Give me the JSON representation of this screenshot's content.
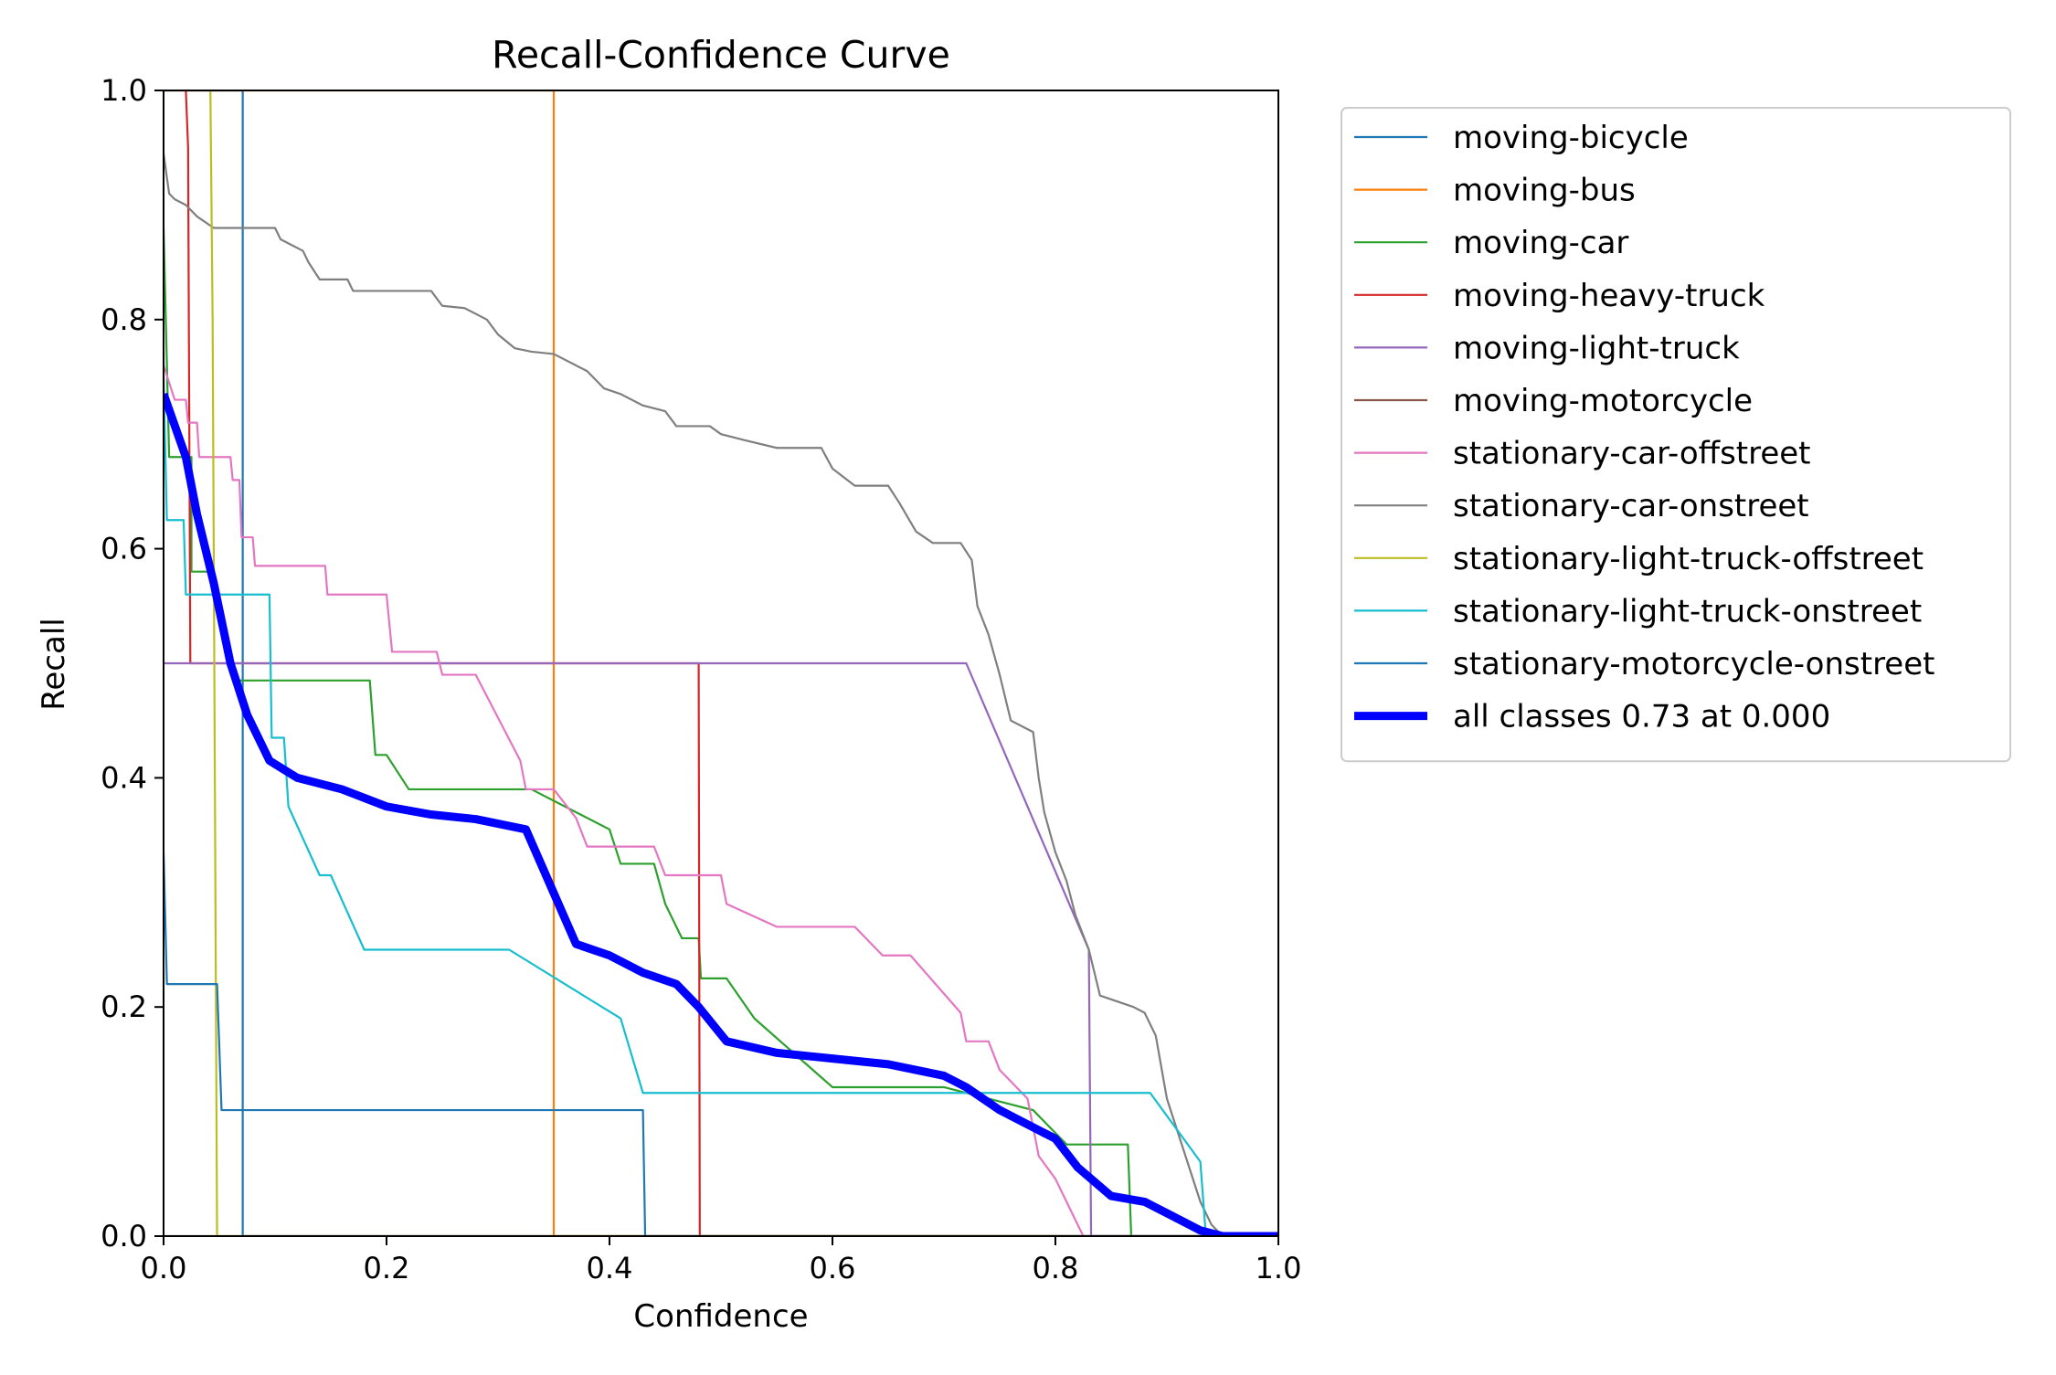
{
  "chart_data": {
    "type": "line",
    "title": "Recall-Confidence Curve",
    "xlabel": "Confidence",
    "ylabel": "Recall",
    "xlim": [
      0,
      1
    ],
    "ylim": [
      0,
      1
    ],
    "xticks": [
      "0.0",
      "0.2",
      "0.4",
      "0.6",
      "0.8",
      "1.0"
    ],
    "yticks": [
      "0.0",
      "0.2",
      "0.4",
      "0.6",
      "0.8",
      "1.0"
    ],
    "grid": false,
    "legend_position": "outside-right-top",
    "series": [
      {
        "name": "moving-bicycle",
        "color": "#1f77b4",
        "points": [
          [
            0,
            1
          ],
          [
            0.071,
            1
          ],
          [
            0.071,
            0
          ],
          [
            1,
            0
          ]
        ]
      },
      {
        "name": "moving-bus",
        "color": "#ff7f0e",
        "points": [
          [
            0,
            1
          ],
          [
            0.35,
            1
          ],
          [
            0.35,
            0
          ],
          [
            1,
            0
          ]
        ]
      },
      {
        "name": "moving-car",
        "color": "#2ca02c",
        "points": [
          [
            0,
            0.88
          ],
          [
            0.005,
            0.68
          ],
          [
            0.025,
            0.68
          ],
          [
            0.025,
            0.58
          ],
          [
            0.042,
            0.58
          ],
          [
            0.05,
            0.55
          ],
          [
            0.055,
            0.52
          ],
          [
            0.065,
            0.485
          ],
          [
            0.185,
            0.485
          ],
          [
            0.19,
            0.42
          ],
          [
            0.2,
            0.42
          ],
          [
            0.22,
            0.39
          ],
          [
            0.33,
            0.39
          ],
          [
            0.4,
            0.355
          ],
          [
            0.41,
            0.325
          ],
          [
            0.44,
            0.325
          ],
          [
            0.45,
            0.29
          ],
          [
            0.465,
            0.26
          ],
          [
            0.48,
            0.26
          ],
          [
            0.482,
            0.225
          ],
          [
            0.505,
            0.225
          ],
          [
            0.53,
            0.19
          ],
          [
            0.6,
            0.13
          ],
          [
            0.7,
            0.13
          ],
          [
            0.78,
            0.11
          ],
          [
            0.8,
            0.09
          ],
          [
            0.81,
            0.08
          ],
          [
            0.865,
            0.08
          ],
          [
            0.868,
            0
          ],
          [
            1,
            0
          ]
        ]
      },
      {
        "name": "moving-heavy-truck",
        "color": "#d62728",
        "points": [
          [
            0.02,
            1
          ],
          [
            0.022,
            0.95
          ],
          [
            0.024,
            0.5
          ],
          [
            0.48,
            0.5
          ],
          [
            0.481,
            0
          ],
          [
            1,
            0
          ]
        ]
      },
      {
        "name": "moving-light-truck",
        "color": "#9467bd",
        "points": [
          [
            0,
            0.5
          ],
          [
            0.72,
            0.5
          ],
          [
            0.83,
            0.25
          ],
          [
            0.832,
            0
          ],
          [
            1,
            0
          ]
        ]
      },
      {
        "name": "moving-motorcycle",
        "color": "#8c564b",
        "points": [
          [
            0,
            0
          ],
          [
            1,
            0
          ]
        ]
      },
      {
        "name": "stationary-car-offstreet",
        "color": "#e377c2",
        "points": [
          [
            0,
            0.76
          ],
          [
            0.01,
            0.73
          ],
          [
            0.02,
            0.73
          ],
          [
            0.022,
            0.71
          ],
          [
            0.03,
            0.71
          ],
          [
            0.032,
            0.68
          ],
          [
            0.06,
            0.68
          ],
          [
            0.062,
            0.66
          ],
          [
            0.068,
            0.66
          ],
          [
            0.07,
            0.61
          ],
          [
            0.08,
            0.61
          ],
          [
            0.082,
            0.585
          ],
          [
            0.145,
            0.585
          ],
          [
            0.147,
            0.56
          ],
          [
            0.2,
            0.56
          ],
          [
            0.205,
            0.51
          ],
          [
            0.245,
            0.51
          ],
          [
            0.25,
            0.49
          ],
          [
            0.28,
            0.49
          ],
          [
            0.32,
            0.415
          ],
          [
            0.325,
            0.39
          ],
          [
            0.35,
            0.39
          ],
          [
            0.37,
            0.365
          ],
          [
            0.38,
            0.34
          ],
          [
            0.44,
            0.34
          ],
          [
            0.45,
            0.315
          ],
          [
            0.5,
            0.315
          ],
          [
            0.505,
            0.29
          ],
          [
            0.55,
            0.27
          ],
          [
            0.62,
            0.27
          ],
          [
            0.645,
            0.245
          ],
          [
            0.67,
            0.245
          ],
          [
            0.715,
            0.195
          ],
          [
            0.72,
            0.17
          ],
          [
            0.74,
            0.17
          ],
          [
            0.75,
            0.145
          ],
          [
            0.775,
            0.12
          ],
          [
            0.785,
            0.07
          ],
          [
            0.8,
            0.05
          ],
          [
            0.81,
            0.03
          ],
          [
            0.82,
            0.01
          ],
          [
            0.825,
            0
          ],
          [
            1,
            0
          ]
        ]
      },
      {
        "name": "stationary-car-onstreet",
        "color": "#7f7f7f",
        "points": [
          [
            0,
            0.945
          ],
          [
            0.005,
            0.91
          ],
          [
            0.01,
            0.905
          ],
          [
            0.02,
            0.9
          ],
          [
            0.03,
            0.89
          ],
          [
            0.045,
            0.88
          ],
          [
            0.1,
            0.88
          ],
          [
            0.105,
            0.87
          ],
          [
            0.125,
            0.86
          ],
          [
            0.13,
            0.85
          ],
          [
            0.14,
            0.835
          ],
          [
            0.165,
            0.835
          ],
          [
            0.17,
            0.825
          ],
          [
            0.24,
            0.825
          ],
          [
            0.25,
            0.812
          ],
          [
            0.27,
            0.81
          ],
          [
            0.29,
            0.8
          ],
          [
            0.3,
            0.787
          ],
          [
            0.315,
            0.775
          ],
          [
            0.33,
            0.772
          ],
          [
            0.35,
            0.77
          ],
          [
            0.38,
            0.755
          ],
          [
            0.395,
            0.74
          ],
          [
            0.41,
            0.735
          ],
          [
            0.43,
            0.725
          ],
          [
            0.45,
            0.72
          ],
          [
            0.46,
            0.707
          ],
          [
            0.49,
            0.707
          ],
          [
            0.5,
            0.7
          ],
          [
            0.52,
            0.695
          ],
          [
            0.55,
            0.688
          ],
          [
            0.59,
            0.688
          ],
          [
            0.6,
            0.67
          ],
          [
            0.62,
            0.655
          ],
          [
            0.65,
            0.655
          ],
          [
            0.66,
            0.64
          ],
          [
            0.675,
            0.615
          ],
          [
            0.69,
            0.605
          ],
          [
            0.715,
            0.605
          ],
          [
            0.725,
            0.59
          ],
          [
            0.73,
            0.55
          ],
          [
            0.74,
            0.525
          ],
          [
            0.75,
            0.49
          ],
          [
            0.76,
            0.45
          ],
          [
            0.78,
            0.44
          ],
          [
            0.785,
            0.4
          ],
          [
            0.79,
            0.37
          ],
          [
            0.8,
            0.335
          ],
          [
            0.81,
            0.31
          ],
          [
            0.818,
            0.28
          ],
          [
            0.83,
            0.25
          ],
          [
            0.84,
            0.21
          ],
          [
            0.87,
            0.2
          ],
          [
            0.88,
            0.195
          ],
          [
            0.89,
            0.175
          ],
          [
            0.9,
            0.12
          ],
          [
            0.91,
            0.09
          ],
          [
            0.92,
            0.06
          ],
          [
            0.93,
            0.03
          ],
          [
            0.94,
            0.01
          ],
          [
            0.95,
            0
          ],
          [
            1,
            0
          ]
        ]
      },
      {
        "name": "stationary-light-truck-offstreet",
        "color": "#bcbd22",
        "points": [
          [
            0.042,
            1
          ],
          [
            0.044,
            0.8
          ],
          [
            0.048,
            0
          ],
          [
            1,
            0
          ]
        ]
      },
      {
        "name": "stationary-light-truck-onstreet",
        "color": "#17becf",
        "points": [
          [
            0,
            0.75
          ],
          [
            0.003,
            0.625
          ],
          [
            0.018,
            0.625
          ],
          [
            0.02,
            0.56
          ],
          [
            0.095,
            0.56
          ],
          [
            0.097,
            0.435
          ],
          [
            0.108,
            0.435
          ],
          [
            0.112,
            0.375
          ],
          [
            0.14,
            0.315
          ],
          [
            0.15,
            0.315
          ],
          [
            0.18,
            0.25
          ],
          [
            0.31,
            0.25
          ],
          [
            0.41,
            0.19
          ],
          [
            0.43,
            0.125
          ],
          [
            0.885,
            0.125
          ],
          [
            0.93,
            0.065
          ],
          [
            0.935,
            0
          ],
          [
            1,
            0
          ]
        ]
      },
      {
        "name": "stationary-motorcycle-onstreet",
        "color": "#1f77b4",
        "points": [
          [
            0,
            0.335
          ],
          [
            0.003,
            0.22
          ],
          [
            0.048,
            0.22
          ],
          [
            0.052,
            0.11
          ],
          [
            0.43,
            0.11
          ],
          [
            0.432,
            0
          ],
          [
            1,
            0
          ]
        ]
      },
      {
        "name": "all classes 0.73 at 0.000",
        "color": "#0000ff",
        "bold": true,
        "points": [
          [
            0,
            0.735
          ],
          [
            0.02,
            0.68
          ],
          [
            0.03,
            0.63
          ],
          [
            0.045,
            0.57
          ],
          [
            0.06,
            0.5
          ],
          [
            0.075,
            0.455
          ],
          [
            0.095,
            0.415
          ],
          [
            0.12,
            0.4
          ],
          [
            0.16,
            0.39
          ],
          [
            0.2,
            0.375
          ],
          [
            0.24,
            0.368
          ],
          [
            0.28,
            0.364
          ],
          [
            0.3,
            0.36
          ],
          [
            0.325,
            0.355
          ],
          [
            0.37,
            0.255
          ],
          [
            0.4,
            0.245
          ],
          [
            0.43,
            0.23
          ],
          [
            0.46,
            0.22
          ],
          [
            0.48,
            0.2
          ],
          [
            0.505,
            0.17
          ],
          [
            0.55,
            0.16
          ],
          [
            0.6,
            0.155
          ],
          [
            0.65,
            0.15
          ],
          [
            0.7,
            0.14
          ],
          [
            0.72,
            0.13
          ],
          [
            0.75,
            0.11
          ],
          [
            0.78,
            0.095
          ],
          [
            0.8,
            0.085
          ],
          [
            0.82,
            0.06
          ],
          [
            0.85,
            0.035
          ],
          [
            0.88,
            0.03
          ],
          [
            0.9,
            0.02
          ],
          [
            0.93,
            0.005
          ],
          [
            0.95,
            0
          ],
          [
            1,
            0
          ]
        ]
      }
    ]
  }
}
